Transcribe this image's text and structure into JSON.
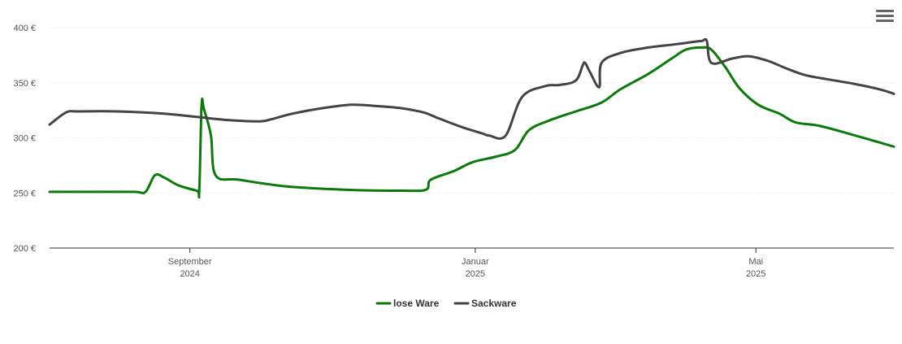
{
  "chart_data": {
    "type": "line",
    "title": "",
    "xlabel": "",
    "ylabel": "",
    "ylim": [
      200,
      400
    ],
    "yticks": [
      "200 €",
      "250 €",
      "300 €",
      "350 €",
      "400 €"
    ],
    "ytick_values": [
      200,
      250,
      300,
      350,
      400
    ],
    "xticks": [
      {
        "date": "2024-09-01",
        "label1": "September",
        "label2": "2024"
      },
      {
        "date": "2025-01-01",
        "label1": "Januar",
        "label2": "2025"
      },
      {
        "date": "2025-05-01",
        "label1": "Mai",
        "label2": "2025"
      }
    ],
    "xlim": [
      "2024-07-03",
      "2025-06-29"
    ],
    "grid": true,
    "legend_position": "bottom-center",
    "series": [
      {
        "name": "lose Ware",
        "color": "#0a7a0a",
        "points": [
          [
            "2024-07-03",
            251
          ],
          [
            "2024-07-20",
            251
          ],
          [
            "2024-08-08",
            251
          ],
          [
            "2024-08-13",
            251
          ],
          [
            "2024-08-17",
            266
          ],
          [
            "2024-08-21",
            264
          ],
          [
            "2024-08-27",
            257
          ],
          [
            "2024-09-04",
            252
          ],
          [
            "2024-09-05",
            252
          ],
          [
            "2024-09-06",
            330
          ],
          [
            "2024-09-07",
            326
          ],
          [
            "2024-09-10",
            302
          ],
          [
            "2024-09-12",
            266
          ],
          [
            "2024-09-22",
            262
          ],
          [
            "2024-10-12",
            256
          ],
          [
            "2024-11-06",
            253
          ],
          [
            "2024-12-01",
            252
          ],
          [
            "2024-12-11",
            253
          ],
          [
            "2024-12-13",
            262
          ],
          [
            "2024-12-23",
            270
          ],
          [
            "2024-12-31",
            278
          ],
          [
            "2025-01-10",
            283
          ],
          [
            "2025-01-18",
            289
          ],
          [
            "2025-01-24",
            307
          ],
          [
            "2025-02-02",
            316
          ],
          [
            "2025-02-13",
            324
          ],
          [
            "2025-02-24",
            332
          ],
          [
            "2025-03-04",
            344
          ],
          [
            "2025-03-16",
            358
          ],
          [
            "2025-03-26",
            372
          ],
          [
            "2025-04-01",
            380
          ],
          [
            "2025-04-08",
            382
          ],
          [
            "2025-04-12",
            380
          ],
          [
            "2025-04-18",
            364
          ],
          [
            "2025-04-24",
            345
          ],
          [
            "2025-05-02",
            330
          ],
          [
            "2025-05-11",
            322
          ],
          [
            "2025-05-18",
            314
          ],
          [
            "2025-05-28",
            311
          ],
          [
            "2025-06-11",
            303
          ],
          [
            "2025-06-29",
            292
          ]
        ]
      },
      {
        "name": "Sackware",
        "color": "#434348",
        "points": [
          [
            "2024-07-03",
            312
          ],
          [
            "2024-07-10",
            323
          ],
          [
            "2024-07-15",
            324
          ],
          [
            "2024-08-01",
            324
          ],
          [
            "2024-08-21",
            322
          ],
          [
            "2024-09-04",
            319
          ],
          [
            "2024-09-18",
            316
          ],
          [
            "2024-10-01",
            315
          ],
          [
            "2024-10-06",
            317
          ],
          [
            "2024-10-15",
            322
          ],
          [
            "2024-10-28",
            327
          ],
          [
            "2024-11-09",
            330
          ],
          [
            "2024-11-19",
            329
          ],
          [
            "2024-11-30",
            327
          ],
          [
            "2024-12-10",
            323
          ],
          [
            "2024-12-16",
            318
          ],
          [
            "2024-12-26",
            310
          ],
          [
            "2025-01-04",
            304
          ],
          [
            "2025-01-07",
            302
          ],
          [
            "2025-01-14",
            302
          ],
          [
            "2025-01-21",
            337
          ],
          [
            "2025-01-31",
            347
          ],
          [
            "2025-02-06",
            348
          ],
          [
            "2025-02-13",
            352
          ],
          [
            "2025-02-16",
            366
          ],
          [
            "2025-02-17",
            368
          ],
          [
            "2025-02-19",
            360
          ],
          [
            "2025-02-23",
            346
          ],
          [
            "2025-02-24",
            368
          ],
          [
            "2025-03-04",
            377
          ],
          [
            "2025-03-16",
            382
          ],
          [
            "2025-03-28",
            385
          ],
          [
            "2025-04-04",
            387
          ],
          [
            "2025-04-08",
            388
          ],
          [
            "2025-04-10",
            388
          ],
          [
            "2025-04-12",
            368
          ],
          [
            "2025-04-21",
            372
          ],
          [
            "2025-04-28",
            374
          ],
          [
            "2025-05-06",
            370
          ],
          [
            "2025-05-14",
            363
          ],
          [
            "2025-05-22",
            357
          ],
          [
            "2025-06-01",
            353
          ],
          [
            "2025-06-12",
            349
          ],
          [
            "2025-06-23",
            344
          ],
          [
            "2025-06-29",
            340
          ]
        ]
      }
    ]
  },
  "ui": {
    "menu_icon": "hamburger-menu-icon"
  }
}
